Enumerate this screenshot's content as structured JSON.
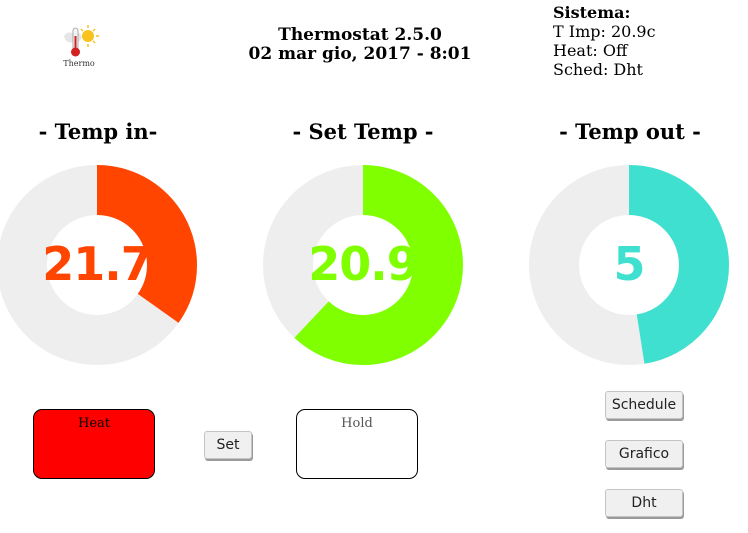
{
  "app": {
    "logo_label": "Thermo",
    "title": "Thermostat 2.5.0",
    "datetime": "02 mar gio, 2017 - 8:01"
  },
  "system": {
    "heading": "Sistema:",
    "t_imp": "T Imp: 20.9c",
    "heat": "Heat: Off",
    "sched": "Sched: Dht"
  },
  "gauges": [
    {
      "title": "- Temp in-",
      "value": "21.7",
      "fraction": 0.348,
      "color": "#ff4500"
    },
    {
      "title": "- Set Temp -",
      "value": "20.9",
      "fraction": 0.62,
      "color": "#7fff00"
    },
    {
      "title": "- Temp out -",
      "value": "5",
      "fraction": 0.475,
      "color": "#40e0d0"
    }
  ],
  "track_color": "#eeeeee",
  "controls": {
    "heat_label": "Heat",
    "heat_color": "#ff0000",
    "set_label": "Set",
    "hold_label": "Hold",
    "schedule_label": "Schedule",
    "grafico_label": "Grafico",
    "dht_label": "Dht"
  }
}
